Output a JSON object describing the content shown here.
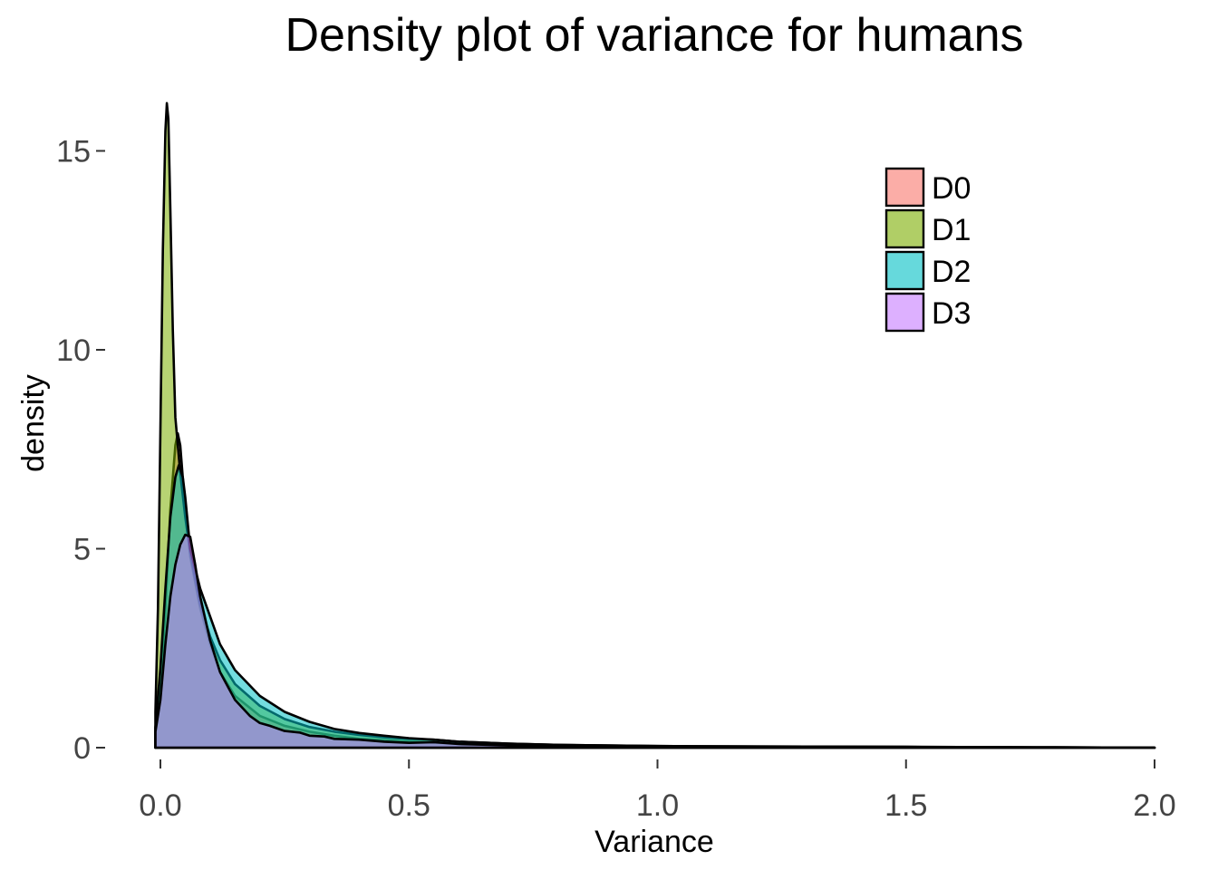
{
  "chart_data": {
    "type": "area",
    "title": "Density plot of variance for humans",
    "xlabel": "Variance",
    "ylabel": "density",
    "xlim": [
      0,
      2.0
    ],
    "ylim": [
      0,
      16.3
    ],
    "xticks": [
      0.0,
      0.5,
      1.0,
      1.5,
      2.0
    ],
    "xtick_labels": [
      "0.0",
      "0.5",
      "1.0",
      "1.5",
      "2.0"
    ],
    "yticks": [
      0,
      5,
      10,
      15
    ],
    "ytick_labels": [
      "0",
      "5",
      "10",
      "15"
    ],
    "grid": false,
    "legend_position": "top-right",
    "series": [
      {
        "name": "D0",
        "color": "#F8766D",
        "points": [
          [
            -0.01,
            0.5
          ],
          [
            0.0,
            1.5
          ],
          [
            0.01,
            3.5
          ],
          [
            0.02,
            6.0
          ],
          [
            0.03,
            7.6
          ],
          [
            0.035,
            7.9
          ],
          [
            0.04,
            7.6
          ],
          [
            0.05,
            6.0
          ],
          [
            0.06,
            4.8
          ],
          [
            0.08,
            3.5
          ],
          [
            0.1,
            2.6
          ],
          [
            0.12,
            1.9
          ],
          [
            0.15,
            1.3
          ],
          [
            0.2,
            0.8
          ],
          [
            0.25,
            0.55
          ],
          [
            0.3,
            0.4
          ],
          [
            0.35,
            0.3
          ],
          [
            0.4,
            0.22
          ],
          [
            0.5,
            0.15
          ],
          [
            0.6,
            0.1
          ],
          [
            0.7,
            0.07
          ],
          [
            0.8,
            0.05
          ],
          [
            1.0,
            0.03
          ],
          [
            1.2,
            0.02
          ],
          [
            1.5,
            0.01
          ],
          [
            2.0,
            0.0
          ]
        ]
      },
      {
        "name": "D1",
        "color": "#7CAE00",
        "points": [
          [
            -0.01,
            0.9
          ],
          [
            -0.005,
            3.5
          ],
          [
            0.0,
            8.0
          ],
          [
            0.005,
            12.5
          ],
          [
            0.01,
            15.5
          ],
          [
            0.013,
            16.2
          ],
          [
            0.016,
            15.8
          ],
          [
            0.02,
            13.5
          ],
          [
            0.025,
            10.5
          ],
          [
            0.03,
            8.3
          ],
          [
            0.04,
            6.9
          ],
          [
            0.05,
            5.8
          ],
          [
            0.06,
            4.9
          ],
          [
            0.08,
            3.6
          ],
          [
            0.1,
            2.8
          ],
          [
            0.12,
            2.2
          ],
          [
            0.15,
            1.6
          ],
          [
            0.2,
            1.05
          ],
          [
            0.25,
            0.72
          ],
          [
            0.3,
            0.52
          ],
          [
            0.35,
            0.4
          ],
          [
            0.4,
            0.32
          ],
          [
            0.45,
            0.26
          ],
          [
            0.5,
            0.22
          ],
          [
            0.55,
            0.2
          ],
          [
            0.6,
            0.15
          ],
          [
            0.7,
            0.1
          ],
          [
            0.8,
            0.07
          ],
          [
            1.0,
            0.04
          ],
          [
            1.2,
            0.03
          ],
          [
            1.5,
            0.02
          ],
          [
            1.8,
            0.01
          ],
          [
            2.0,
            0.0
          ]
        ]
      },
      {
        "name": "D2",
        "color": "#00BFC4",
        "points": [
          [
            -0.01,
            0.5
          ],
          [
            0.0,
            2.0
          ],
          [
            0.01,
            4.0
          ],
          [
            0.02,
            5.8
          ],
          [
            0.03,
            6.8
          ],
          [
            0.037,
            7.1
          ],
          [
            0.045,
            6.8
          ],
          [
            0.05,
            6.3
          ],
          [
            0.06,
            5.0
          ],
          [
            0.08,
            4.0
          ],
          [
            0.1,
            3.3
          ],
          [
            0.12,
            2.6
          ],
          [
            0.15,
            1.95
          ],
          [
            0.2,
            1.3
          ],
          [
            0.25,
            0.9
          ],
          [
            0.3,
            0.65
          ],
          [
            0.35,
            0.47
          ],
          [
            0.4,
            0.37
          ],
          [
            0.45,
            0.3
          ],
          [
            0.5,
            0.24
          ],
          [
            0.55,
            0.2
          ],
          [
            0.6,
            0.15
          ],
          [
            0.7,
            0.1
          ],
          [
            0.8,
            0.07
          ],
          [
            1.0,
            0.04
          ],
          [
            1.2,
            0.03
          ],
          [
            1.5,
            0.02
          ],
          [
            1.8,
            0.01
          ],
          [
            2.0,
            0.0
          ]
        ]
      },
      {
        "name": "D3",
        "color": "#C77CFF",
        "points": [
          [
            -0.01,
            0.4
          ],
          [
            0.0,
            1.2
          ],
          [
            0.01,
            2.6
          ],
          [
            0.02,
            3.8
          ],
          [
            0.03,
            4.6
          ],
          [
            0.04,
            5.1
          ],
          [
            0.05,
            5.35
          ],
          [
            0.06,
            5.3
          ],
          [
            0.07,
            4.6
          ],
          [
            0.08,
            3.8
          ],
          [
            0.1,
            2.7
          ],
          [
            0.12,
            1.9
          ],
          [
            0.15,
            1.2
          ],
          [
            0.18,
            0.8
          ],
          [
            0.2,
            0.62
          ],
          [
            0.22,
            0.55
          ],
          [
            0.25,
            0.42
          ],
          [
            0.28,
            0.38
          ],
          [
            0.3,
            0.3
          ],
          [
            0.33,
            0.28
          ],
          [
            0.35,
            0.22
          ],
          [
            0.4,
            0.2
          ],
          [
            0.45,
            0.15
          ],
          [
            0.5,
            0.12
          ],
          [
            0.55,
            0.14
          ],
          [
            0.6,
            0.09
          ],
          [
            0.7,
            0.06
          ],
          [
            0.8,
            0.05
          ],
          [
            1.0,
            0.03
          ],
          [
            1.2,
            0.02
          ],
          [
            1.5,
            0.01
          ],
          [
            2.0,
            0.0
          ]
        ]
      }
    ]
  }
}
